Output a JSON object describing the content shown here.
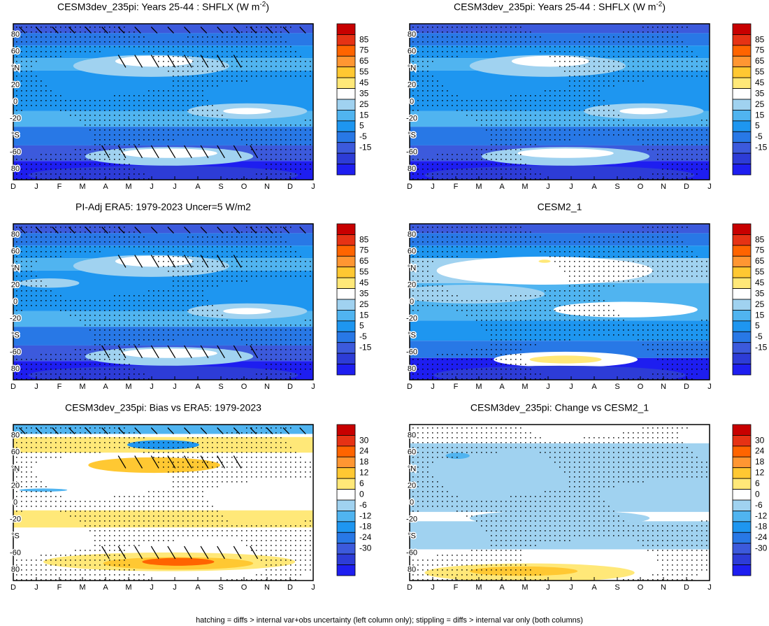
{
  "footnote": "hatching = diffs > internal var+obs uncertainty (left column only); stippling = diffs > internal var only (both columns)",
  "chart_data": [
    {
      "type": "heatmap",
      "title": "CESM3dev_235pi: Years 25-44 : SHFLX (W m",
      "title_sup": "-2",
      "title_end": ")",
      "xlabels": [
        "D",
        "J",
        "F",
        "M",
        "A",
        "M",
        "J",
        "J",
        "A",
        "S",
        "O",
        "N",
        "D",
        "J"
      ],
      "ylabels": [
        "80",
        "60",
        "°N",
        "20",
        "0",
        "-20",
        "°S",
        "-60",
        "80"
      ],
      "colorbar_labels": [
        "85",
        "75",
        "65",
        "55",
        "45",
        "35",
        "25",
        "15",
        "5",
        "-5",
        "-15"
      ],
      "colorbar": {
        "colors": [
          "#c80000",
          "#e63214",
          "#ff6400",
          "#ff9632",
          "#ffc832",
          "#ffe878",
          "#ffffff",
          "#a0d2f0",
          "#50b4f0",
          "#1e96f0",
          "#2878e6",
          "#3c5adc",
          "#2d3cd7",
          "#1e1ef0"
        ]
      },
      "pattern": "clim-a",
      "hatching": true,
      "stippling": true
    },
    {
      "type": "heatmap",
      "title": "CESM3dev_235pi: Years 25-44 : SHFLX (W m",
      "title_sup": "-2",
      "title_end": ")",
      "xlabels": [
        "D",
        "J",
        "F",
        "M",
        "A",
        "M",
        "J",
        "J",
        "A",
        "S",
        "O",
        "N",
        "D",
        "J"
      ],
      "ylabels": [
        "80",
        "60",
        "°N",
        "20",
        "0",
        "-20",
        "°S",
        "-60",
        "80"
      ],
      "colorbar_labels": [
        "85",
        "75",
        "65",
        "55",
        "45",
        "35",
        "25",
        "15",
        "5",
        "-5",
        "-15"
      ],
      "colorbar": {
        "colors": [
          "#c80000",
          "#e63214",
          "#ff6400",
          "#ff9632",
          "#ffc832",
          "#ffe878",
          "#ffffff",
          "#a0d2f0",
          "#50b4f0",
          "#1e96f0",
          "#2878e6",
          "#3c5adc",
          "#2d3cd7",
          "#1e1ef0"
        ]
      },
      "pattern": "clim-a",
      "hatching": false,
      "stippling": true
    },
    {
      "type": "heatmap",
      "title": "PI-Adj ERA5: 1979-2023 Uncer=5 W/m2",
      "title_sup": "",
      "title_end": "",
      "xlabels": [
        "D",
        "J",
        "F",
        "M",
        "A",
        "M",
        "J",
        "J",
        "A",
        "S",
        "O",
        "N",
        "D",
        "J"
      ],
      "ylabels": [
        "80",
        "60",
        "°N",
        "20",
        "0",
        "-20",
        "°S",
        "-60",
        "80"
      ],
      "colorbar_labels": [
        "85",
        "75",
        "65",
        "55",
        "45",
        "35",
        "25",
        "15",
        "5",
        "-5",
        "-15"
      ],
      "colorbar": {
        "colors": [
          "#c80000",
          "#e63214",
          "#ff6400",
          "#ff9632",
          "#ffc832",
          "#ffe878",
          "#ffffff",
          "#a0d2f0",
          "#50b4f0",
          "#1e96f0",
          "#2878e6",
          "#3c5adc",
          "#2d3cd7",
          "#1e1ef0"
        ]
      },
      "pattern": "clim-b",
      "hatching": true,
      "stippling": true
    },
    {
      "type": "heatmap",
      "title": "CESM2_1",
      "title_sup": "",
      "title_end": "",
      "xlabels": [
        "D",
        "J",
        "F",
        "M",
        "A",
        "M",
        "J",
        "J",
        "A",
        "S",
        "O",
        "N",
        "D",
        "J"
      ],
      "ylabels": [
        "80",
        "60",
        "°N",
        "20",
        "0",
        "-20",
        "°S",
        "-60",
        "80"
      ],
      "colorbar_labels": [
        "85",
        "75",
        "65",
        "55",
        "45",
        "35",
        "25",
        "15",
        "5",
        "-5",
        "-15"
      ],
      "colorbar": {
        "colors": [
          "#c80000",
          "#e63214",
          "#ff6400",
          "#ff9632",
          "#ffc832",
          "#ffe878",
          "#ffffff",
          "#a0d2f0",
          "#50b4f0",
          "#1e96f0",
          "#2878e6",
          "#3c5adc",
          "#2d3cd7",
          "#1e1ef0"
        ]
      },
      "pattern": "clim-c",
      "hatching": false,
      "stippling": true
    },
    {
      "type": "heatmap",
      "title": "CESM3dev_235pi: Bias vs ERA5: 1979-2023",
      "title_sup": "",
      "title_end": "",
      "xlabels": [
        "D",
        "J",
        "F",
        "M",
        "A",
        "M",
        "J",
        "J",
        "A",
        "S",
        "O",
        "N",
        "D",
        "J"
      ],
      "ylabels": [
        "80",
        "60",
        "°N",
        "20",
        "0",
        "-20",
        "°S",
        "-60",
        "80"
      ],
      "colorbar_labels": [
        "30",
        "24",
        "18",
        "12",
        "6",
        "0",
        "-6",
        "-12",
        "-18",
        "-24",
        "-30"
      ],
      "colorbar": {
        "colors": [
          "#c80000",
          "#e63214",
          "#ff6400",
          "#ff9632",
          "#ffc832",
          "#ffe878",
          "#ffffff",
          "#a0d2f0",
          "#50b4f0",
          "#1e96f0",
          "#2878e6",
          "#3c5adc",
          "#2d3cd7",
          "#1e1ef0"
        ]
      },
      "pattern": "bias",
      "hatching": true,
      "stippling": true
    },
    {
      "type": "heatmap",
      "title": "CESM3dev_235pi: Change vs CESM2_1",
      "title_sup": "",
      "title_end": "",
      "xlabels": [
        "D",
        "J",
        "F",
        "M",
        "A",
        "M",
        "J",
        "J",
        "A",
        "S",
        "O",
        "N",
        "D",
        "J"
      ],
      "ylabels": [
        "80",
        "60",
        "°N",
        "20",
        "0",
        "-20",
        "°S",
        "-60",
        "80"
      ],
      "colorbar_labels": [
        "30",
        "24",
        "18",
        "12",
        "6",
        "0",
        "-6",
        "-12",
        "-18",
        "-24",
        "-30"
      ],
      "colorbar": {
        "colors": [
          "#c80000",
          "#e63214",
          "#ff6400",
          "#ff9632",
          "#ffc832",
          "#ffe878",
          "#ffffff",
          "#a0d2f0",
          "#50b4f0",
          "#1e96f0",
          "#2878e6",
          "#3c5adc",
          "#2d3cd7",
          "#1e1ef0"
        ]
      },
      "pattern": "change",
      "hatching": false,
      "stippling": true
    }
  ]
}
